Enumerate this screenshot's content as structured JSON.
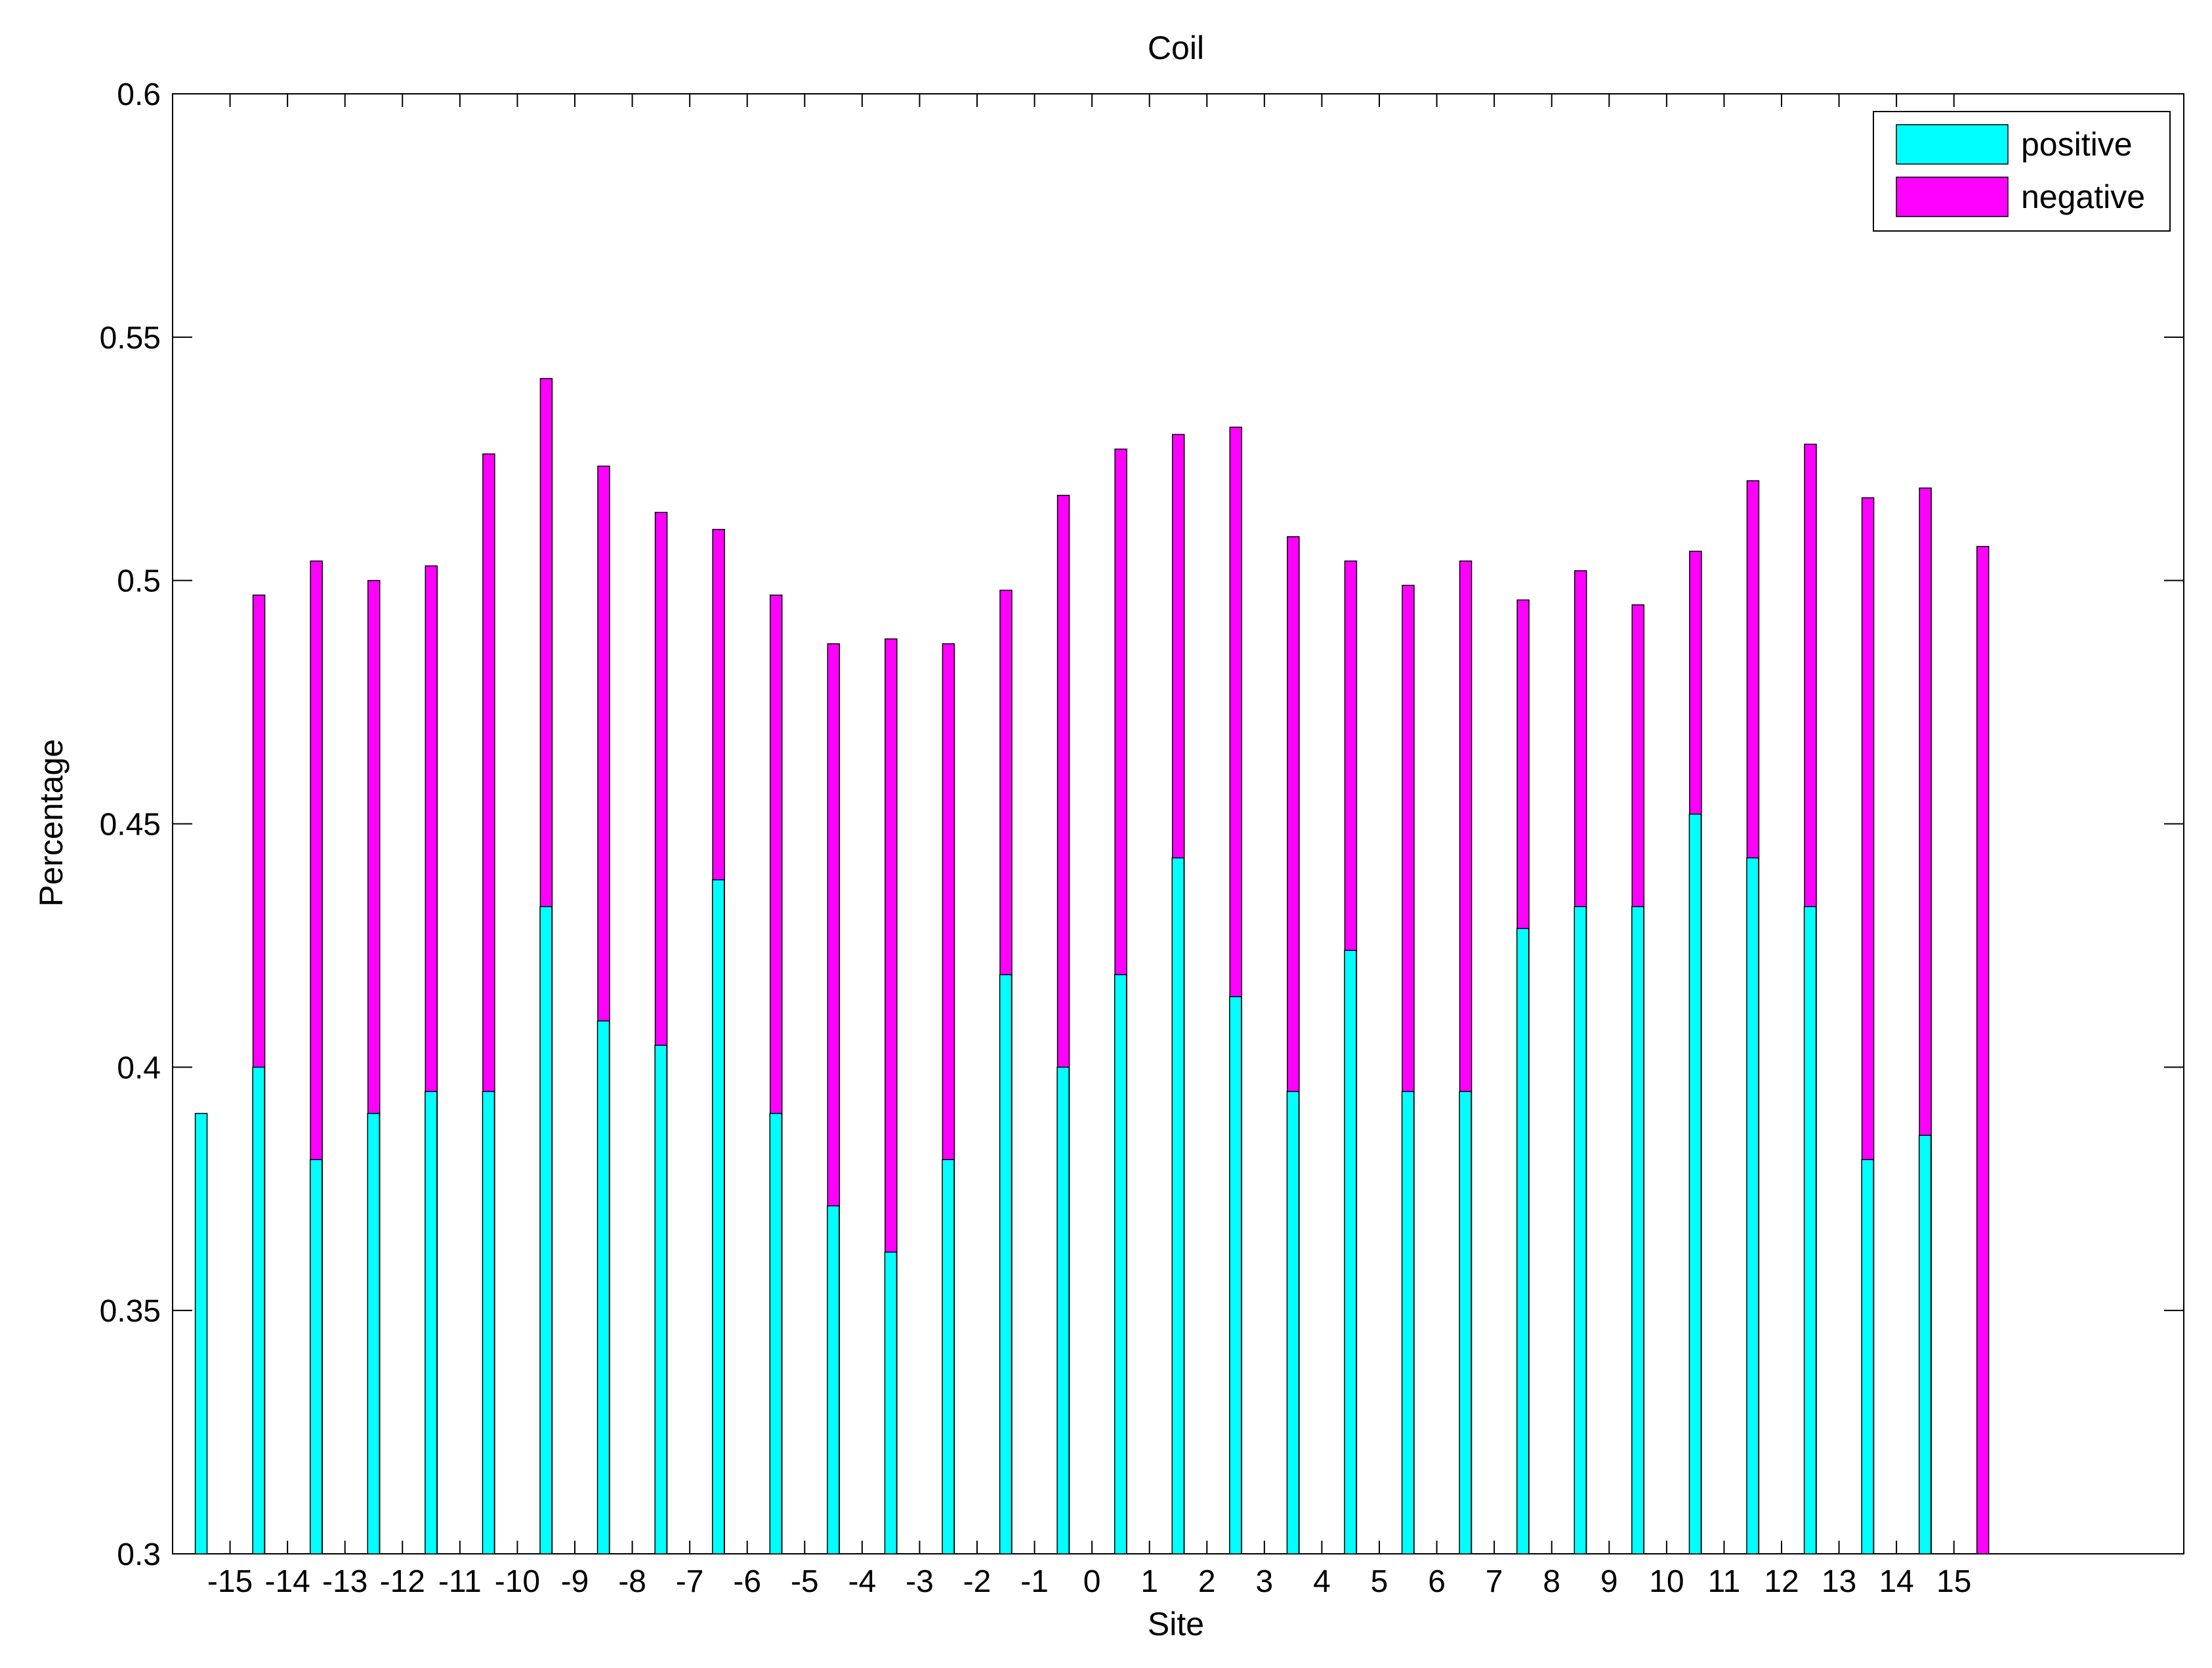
{
  "chart_data": {
    "type": "bar",
    "title": "Coil",
    "xlabel": "Site",
    "ylabel": "Percentage",
    "ylim": [
      0.3,
      0.6
    ],
    "yticks": [
      "0.3",
      "0.35",
      "0.4",
      "0.45",
      "0.5",
      "0.55",
      "0.6"
    ],
    "xlim": [
      -16,
      19
    ],
    "grid": false,
    "legend_position": "top-right",
    "categories": [
      "-15",
      "-14",
      "-13",
      "-12",
      "-11",
      "-10",
      "-9",
      "-8",
      "-7",
      "-6",
      "-5",
      "-4",
      "-3",
      "-2",
      "-1",
      "0",
      "1",
      "2",
      "3",
      "4",
      "5",
      "6",
      "7",
      "8",
      "9",
      "10",
      "11",
      "12",
      "13",
      "14",
      "15"
    ],
    "series": [
      {
        "name": "positive",
        "color": "#00ffff",
        "values": [
          0.3905,
          0.4,
          0.381,
          0.3905,
          0.395,
          0.395,
          0.433,
          0.4095,
          0.4045,
          0.4385,
          0.3905,
          0.3715,
          0.362,
          0.381,
          0.419,
          0.4,
          0.419,
          0.443,
          0.4145,
          0.395,
          0.424,
          0.395,
          0.395,
          0.4285,
          0.433,
          0.433,
          0.452,
          0.443,
          0.433,
          0.381,
          0.386
        ]
      },
      {
        "name": "negative",
        "color": "#ff00ff",
        "values": [
          0.497,
          0.504,
          0.5,
          0.503,
          0.526,
          0.5415,
          0.5235,
          0.514,
          0.5105,
          0.497,
          0.487,
          0.488,
          0.487,
          0.498,
          0.5175,
          0.527,
          0.53,
          0.5315,
          0.509,
          0.504,
          0.499,
          0.504,
          0.496,
          0.502,
          0.495,
          0.506,
          0.5205,
          0.528,
          0.517,
          0.519,
          0.507
        ]
      }
    ]
  }
}
